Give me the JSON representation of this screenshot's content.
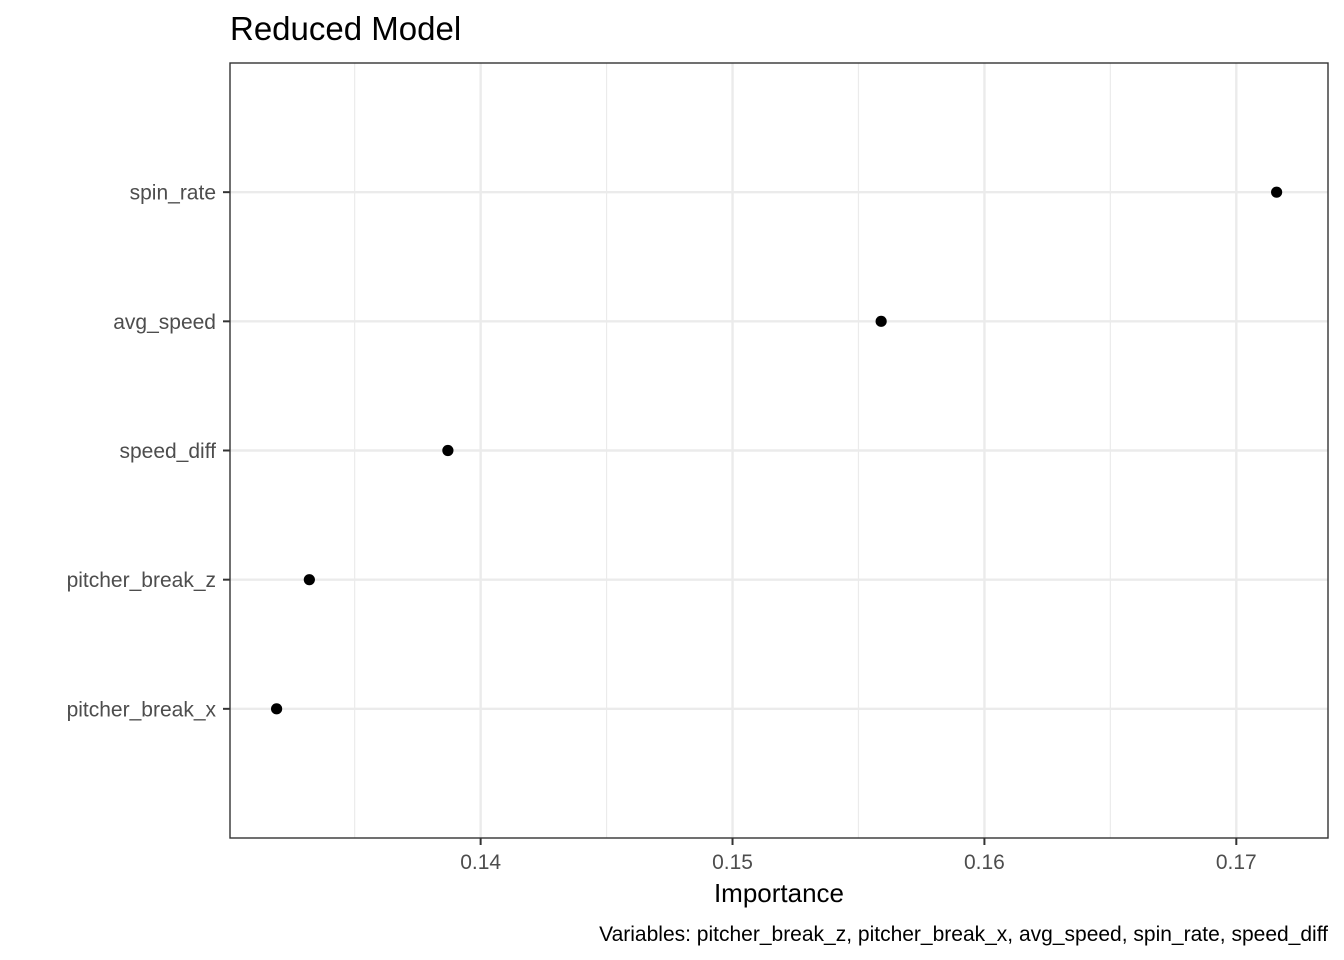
{
  "chart_data": {
    "type": "scatter",
    "title": "Reduced Model",
    "xlabel": "Importance",
    "ylabel": "",
    "caption": "Variables: pitcher_break_z, pitcher_break_x, avg_speed, spin_rate, speed_diff",
    "categories": [
      "pitcher_break_x",
      "pitcher_break_z",
      "speed_diff",
      "avg_speed",
      "spin_rate"
    ],
    "values": [
      0.1319,
      0.1332,
      0.1387,
      0.1559,
      0.1716
    ],
    "xlim": [
      0.13005,
      0.17364
    ],
    "x_ticks": [
      0.14,
      0.15,
      0.16,
      0.17
    ],
    "x_tick_labels": [
      "0.14",
      "0.15",
      "0.16",
      "0.17"
    ],
    "x_minor_ticks": [
      0.135,
      0.145,
      0.155,
      0.165
    ],
    "grid": true,
    "legend": "none",
    "colors": {
      "point": "#000000",
      "grid_major": "#ebebeb",
      "grid_minor": "#ebebeb",
      "panel_border": "#333333",
      "tick_label": "#4d4d4d",
      "background": "#ffffff"
    }
  }
}
